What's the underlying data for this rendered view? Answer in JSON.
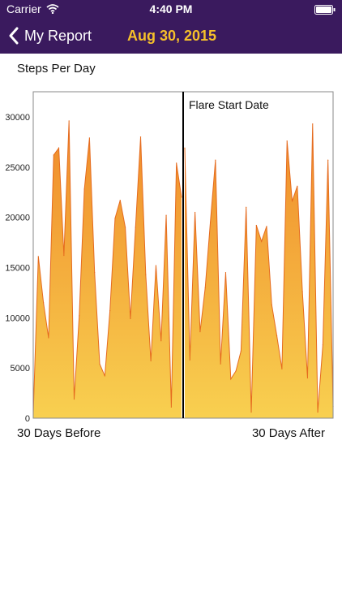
{
  "status_bar": {
    "carrier": "Carrier",
    "time": "4:40 PM"
  },
  "nav": {
    "back_label": "My Report",
    "title": "Aug 30, 2015",
    "title_color": "#f6c02a",
    "bar_color": "#3a1a5e"
  },
  "chart_data": {
    "type": "area",
    "title": "Steps Per Day",
    "x_start_label": "30 Days Before",
    "x_end_label": "30 Days After",
    "annotation": "Flare Start Date",
    "ylim": [
      0,
      32500
    ],
    "yticks": [
      0,
      5000,
      10000,
      15000,
      20000,
      25000,
      30000
    ],
    "before": [
      400,
      16100,
      11500,
      8000,
      26200,
      26900,
      16200,
      29600,
      1900,
      10200,
      22800,
      27900,
      14500,
      5400,
      4200,
      10700,
      19900,
      21700,
      19000,
      9900,
      19000,
      28000,
      14300,
      5700,
      15200,
      7700,
      20200,
      1100,
      25400,
      22000
    ],
    "after": [
      26900,
      5800,
      20500,
      8600,
      13000,
      19500,
      25700,
      5400,
      14500,
      3900,
      4700,
      6700,
      21000,
      600,
      19200,
      17600,
      19100,
      11300,
      8200,
      4900,
      27600,
      21600,
      23100,
      12600,
      4000,
      29300,
      600,
      7300,
      25700,
      1200
    ],
    "fill_top_color": "#f08a2a",
    "fill_bottom_color": "#f8d050",
    "line_color": "#e56b1f",
    "grid": false
  }
}
